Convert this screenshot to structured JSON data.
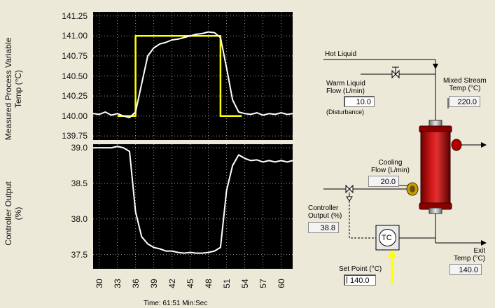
{
  "left_panel": {
    "top_ylabel_line1": "Measured Process Variable",
    "top_ylabel_line2": "Temp (°C)",
    "bottom_ylabel_line1": "Controller Output",
    "bottom_ylabel_line2": "(%)",
    "time_label": "Time:  61:51  Min:Sec"
  },
  "process": {
    "hot_liquid": "Hot Liquid",
    "warm_liquid_line1": "Warm Liquid",
    "warm_liquid_line2": "Flow (L/min)",
    "warm_liquid_value": "10.0",
    "disturbance": "(Disturbance)",
    "mixed_stream_line1": "Mixed Stream",
    "mixed_stream_line2": "Temp (°C)",
    "mixed_stream_value": "220.0",
    "cooling_line1": "Cooling",
    "cooling_line2": "Flow (L/min)",
    "cooling_value": "20.0",
    "controller_output_line1": "Controller",
    "controller_output_line2": "Output (%)",
    "controller_output_value": "38.8",
    "tc_label": "TC",
    "set_point_label": "Set Point (°C)",
    "set_point_value": "140.0",
    "exit_line1": "Exit",
    "exit_line2": "Temp (°C)",
    "exit_value": "140.0"
  },
  "colors": {
    "plot_bg": "#000000",
    "measured": "#ffffff",
    "setpoint": "#ffff00",
    "vessel": "#b00000",
    "arrow": "#ffff00"
  },
  "chart_data": [
    {
      "type": "line",
      "title": "",
      "xlabel": "",
      "ylabel": "Measured Process Variable Temp (°C)",
      "xlim": [
        29,
        61.9
      ],
      "ylim": [
        139.7,
        141.3
      ],
      "yticks": [
        "141.25",
        "141.00",
        "140.75",
        "140.50",
        "140.25",
        "140.00",
        "139.75"
      ],
      "grid": true,
      "series": [
        {
          "key": "measured",
          "x": [
            29,
            30,
            31,
            32,
            33,
            34,
            35,
            36,
            37,
            38,
            39,
            40,
            41,
            42,
            43,
            44,
            45,
            46,
            47,
            48,
            49,
            50,
            51,
            52,
            53,
            54,
            55,
            56,
            57,
            58,
            59,
            60,
            61,
            61.9
          ],
          "y": [
            140.03,
            140.02,
            140.05,
            140.01,
            140.03,
            140.0,
            139.98,
            140.05,
            140.4,
            140.75,
            140.85,
            140.9,
            140.92,
            140.95,
            140.96,
            140.98,
            141.0,
            141.02,
            141.03,
            141.05,
            141.04,
            140.98,
            140.6,
            140.2,
            140.05,
            140.03,
            140.02,
            140.04,
            140.01,
            140.03,
            140.02,
            140.04,
            140.02,
            140.03
          ]
        },
        {
          "key": "setpoint",
          "x": [
            33,
            36,
            36,
            50,
            50,
            53.5
          ],
          "y": [
            140.0,
            140.0,
            141.0,
            141.0,
            140.0,
            140.0
          ]
        }
      ]
    },
    {
      "type": "line",
      "title": "",
      "xlabel": "Time",
      "ylabel": "Controller Output (%)",
      "xlim": [
        29,
        61.9
      ],
      "ylim": [
        37.3,
        39.05
      ],
      "xticks": [
        30,
        33,
        36,
        39,
        42,
        45,
        48,
        51,
        54,
        57,
        60
      ],
      "yticks": [
        "39.0",
        "38.5",
        "38.0",
        "37.5"
      ],
      "grid": true,
      "series": [
        {
          "key": "output",
          "x": [
            29,
            30,
            31,
            32,
            33,
            34,
            35,
            36,
            37,
            38,
            39,
            40,
            41,
            42,
            43,
            44,
            45,
            46,
            47,
            48,
            49,
            50,
            51,
            52,
            53,
            54,
            55,
            56,
            57,
            58,
            59,
            60,
            61,
            61.9
          ],
          "y": [
            39.0,
            39.0,
            39.0,
            39.0,
            39.02,
            39.0,
            38.95,
            38.1,
            37.75,
            37.65,
            37.6,
            37.58,
            37.55,
            37.55,
            37.53,
            37.52,
            37.53,
            37.52,
            37.52,
            37.53,
            37.55,
            37.6,
            38.4,
            38.75,
            38.9,
            38.85,
            38.82,
            38.83,
            38.8,
            38.82,
            38.8,
            38.82,
            38.8,
            38.82
          ]
        }
      ]
    }
  ]
}
